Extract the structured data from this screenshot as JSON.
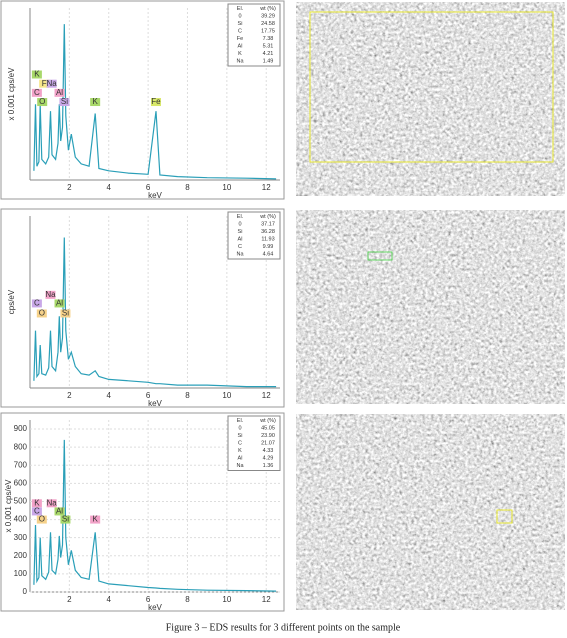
{
  "chart_data": [
    {
      "type": "line",
      "ylabel": "x 0.001 cps/eV",
      "xlabel": "keV",
      "color": "#2a9fb8",
      "xlim": [
        0,
        12.7
      ],
      "ylim": [
        0,
        750
      ],
      "xticks": [
        2,
        4,
        6,
        8,
        10,
        12
      ],
      "x": [
        0.2,
        0.28,
        0.35,
        0.45,
        0.52,
        0.6,
        0.8,
        0.95,
        1.04,
        1.12,
        1.3,
        1.42,
        1.49,
        1.56,
        1.65,
        1.74,
        1.82,
        1.95,
        2.1,
        2.3,
        2.6,
        3.0,
        3.31,
        3.5,
        4.0,
        5.0,
        6.0,
        6.4,
        6.6,
        7.5,
        9,
        11,
        12.5
      ],
      "values": [
        40,
        330,
        60,
        80,
        330,
        90,
        70,
        100,
        300,
        110,
        90,
        160,
        330,
        170,
        230,
        680,
        280,
        130,
        200,
        100,
        70,
        60,
        290,
        50,
        40,
        30,
        25,
        300,
        22,
        15,
        10,
        8,
        5
      ],
      "annotations": [
        {
          "label": "K",
          "color": "#a8d86a",
          "x": 0.35,
          "y": 460
        },
        {
          "label": "F",
          "color": "#f6e58a",
          "x": 0.72,
          "y": 420
        },
        {
          "label": "Na",
          "color": "#c9a8e8",
          "x": 1.1,
          "y": 420
        },
        {
          "label": "C",
          "color": "#f2a2c8",
          "x": 0.35,
          "y": 380
        },
        {
          "label": "Al",
          "color": "#f2a2c8",
          "x": 1.5,
          "y": 380
        },
        {
          "label": "O",
          "color": "#a8d86a",
          "x": 0.62,
          "y": 340
        },
        {
          "label": "Si",
          "color": "#c9a8e8",
          "x": 1.75,
          "y": 340
        },
        {
          "label": "K",
          "color": "#a8d86a",
          "x": 3.31,
          "y": 340
        },
        {
          "label": "Fe",
          "color": "#d8e86a",
          "x": 6.4,
          "y": 340
        }
      ],
      "table": {
        "header": [
          "El.",
          "wt (%)"
        ],
        "rows": [
          [
            "0",
            "39.29"
          ],
          [
            "Si",
            "24.58"
          ],
          [
            "C",
            "17.75"
          ],
          [
            "Fe",
            "7.38"
          ],
          [
            "Al",
            "5.31"
          ],
          [
            "K",
            "4.21"
          ],
          [
            "Na",
            "1.49"
          ]
        ]
      }
    },
    {
      "type": "line",
      "ylabel": "cps/eV",
      "xlabel": "keV",
      "color": "#2a9fb8",
      "xlim": [
        0,
        12.7
      ],
      "ylim": [
        0,
        1.2
      ],
      "xticks": [
        2,
        4,
        6,
        8,
        10,
        12
      ],
      "x": [
        0.2,
        0.28,
        0.35,
        0.45,
        0.52,
        0.6,
        0.8,
        0.95,
        1.04,
        1.12,
        1.3,
        1.42,
        1.49,
        1.56,
        1.65,
        1.74,
        1.82,
        1.95,
        2.1,
        2.3,
        2.6,
        3.0,
        3.31,
        3.5,
        4.0,
        5.0,
        6.0,
        6.4,
        6.6,
        7.5,
        9,
        11,
        12.5
      ],
      "values": [
        0.05,
        0.4,
        0.08,
        0.1,
        0.3,
        0.1,
        0.09,
        0.14,
        0.4,
        0.15,
        0.12,
        0.25,
        0.5,
        0.25,
        0.35,
        1.05,
        0.4,
        0.2,
        0.25,
        0.15,
        0.1,
        0.09,
        0.12,
        0.08,
        0.06,
        0.05,
        0.04,
        0.03,
        0.03,
        0.02,
        0.02,
        0.01,
        0.01
      ],
      "annotations": [
        {
          "label": "Na",
          "color": "#f2a2c8",
          "x": 1.04,
          "y": 0.65
        },
        {
          "label": "C",
          "color": "#c9a8e8",
          "x": 0.35,
          "y": 0.59
        },
        {
          "label": "Al",
          "color": "#a8d86a",
          "x": 1.5,
          "y": 0.59
        },
        {
          "label": "O",
          "color": "#f6d28a",
          "x": 0.6,
          "y": 0.52
        },
        {
          "label": "Si",
          "color": "#f6d28a",
          "x": 1.8,
          "y": 0.52
        }
      ],
      "table": {
        "header": [
          "El.",
          "wt (%)"
        ],
        "rows": [
          [
            "0",
            "37.17"
          ],
          [
            "Si",
            "36.28"
          ],
          [
            "Al",
            "11.93"
          ],
          [
            "C",
            "9.99"
          ],
          [
            "Na",
            "4.64"
          ]
        ]
      }
    },
    {
      "type": "line",
      "ylabel": "x 0.001 cps/eV",
      "xlabel": "keV",
      "color": "#2a9fb8",
      "xlim": [
        0,
        12.7
      ],
      "ylim": [
        0,
        950
      ],
      "xticks": [
        2,
        4,
        6,
        8,
        10,
        12
      ],
      "yticks": [
        0,
        100,
        200,
        300,
        400,
        500,
        600,
        700,
        800,
        900
      ],
      "x": [
        0.2,
        0.28,
        0.35,
        0.45,
        0.52,
        0.6,
        0.8,
        0.95,
        1.04,
        1.12,
        1.3,
        1.42,
        1.49,
        1.56,
        1.65,
        1.74,
        1.82,
        1.95,
        2.1,
        2.3,
        2.6,
        3.0,
        3.31,
        3.5,
        4.0,
        5.0,
        6.0,
        6.4,
        6.6,
        7.5,
        9,
        11,
        12.5
      ],
      "values": [
        40,
        370,
        60,
        80,
        300,
        90,
        70,
        110,
        330,
        120,
        100,
        180,
        310,
        190,
        260,
        840,
        300,
        150,
        230,
        120,
        80,
        70,
        330,
        60,
        45,
        35,
        25,
        22,
        20,
        15,
        10,
        8,
        5
      ],
      "annotations": [
        {
          "label": "K",
          "color": "#f2a2c8",
          "x": 0.35,
          "y": 490
        },
        {
          "label": "Na",
          "color": "#f2a2c8",
          "x": 1.1,
          "y": 490
        },
        {
          "label": "C",
          "color": "#c9a8e8",
          "x": 0.35,
          "y": 445
        },
        {
          "label": "Al",
          "color": "#a8d86a",
          "x": 1.5,
          "y": 445
        },
        {
          "label": "O",
          "color": "#f6d28a",
          "x": 0.6,
          "y": 400
        },
        {
          "label": "Si",
          "color": "#a8d86a",
          "x": 1.8,
          "y": 400
        },
        {
          "label": "K",
          "color": "#f2a2c8",
          "x": 3.31,
          "y": 400
        }
      ],
      "table": {
        "header": [
          "El.",
          "wt (%)"
        ],
        "rows": [
          [
            "0",
            "45.05"
          ],
          [
            "Si",
            "23.90"
          ],
          [
            "C",
            "21.07"
          ],
          [
            "K",
            "4.33"
          ],
          [
            "Al",
            "4.29"
          ],
          [
            "Na",
            "1.36"
          ]
        ]
      }
    }
  ],
  "caption": "Figure 3 – EDS results for 3 different points on the sample"
}
